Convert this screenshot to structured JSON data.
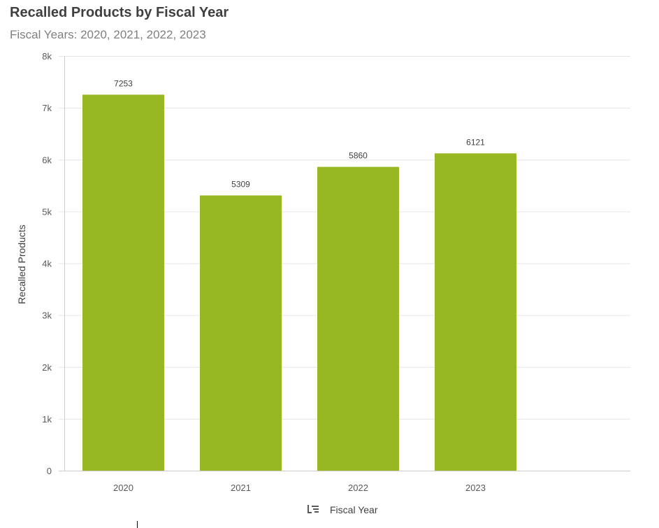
{
  "title": "Recalled Products by Fiscal Year",
  "subtitle": "Fiscal Years: 2020, 2021, 2022, 2023",
  "colors": {
    "bar": "#98b823",
    "grid": "#e6e6e6",
    "axis": "#cccccc"
  },
  "x_axis_icon": "sort-icon",
  "chart_data": {
    "type": "bar",
    "title": "Recalled Products by Fiscal Year",
    "subtitle": "Fiscal Years: 2020, 2021, 2022, 2023",
    "xlabel": "Fiscal Year",
    "ylabel": "Recalled Products",
    "categories": [
      "2020",
      "2021",
      "2022",
      "2023"
    ],
    "values": [
      7253,
      5309,
      5860,
      6121
    ],
    "ylim": [
      0,
      8000
    ],
    "yticks": [
      0,
      1000,
      2000,
      3000,
      4000,
      5000,
      6000,
      7000,
      8000
    ],
    "ytick_labels": [
      "0",
      "1k",
      "2k",
      "3k",
      "4k",
      "5k",
      "6k",
      "7k",
      "8k"
    ],
    "grid": true,
    "legend": false
  }
}
